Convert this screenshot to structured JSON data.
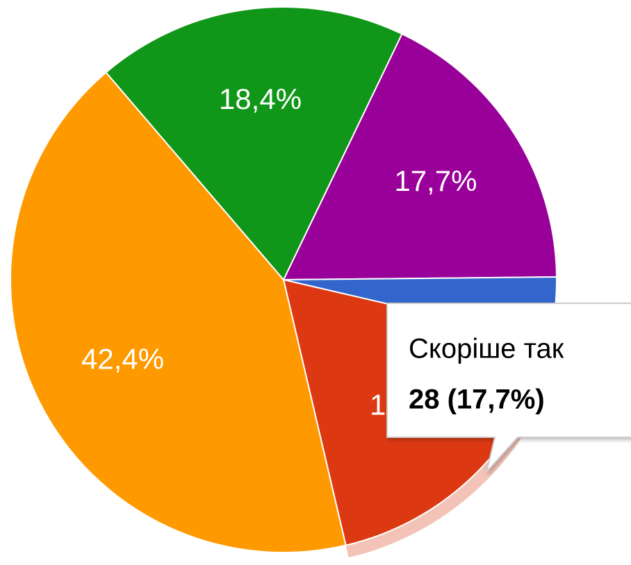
{
  "chart_data": {
    "type": "pie",
    "values": [
      17.7,
      3.8,
      17.7,
      42.4,
      18.4
    ],
    "value_labels": [
      "17,7%",
      null,
      "17,7%",
      "42,4%",
      "18,4%"
    ],
    "colors": [
      "#990099",
      "#3366cc",
      "#dc3912",
      "#ff9900",
      "#109618"
    ],
    "highlighted": 2,
    "tooltip": {
      "title": "Скоріше так",
      "text": "28 (17,7%)"
    }
  }
}
